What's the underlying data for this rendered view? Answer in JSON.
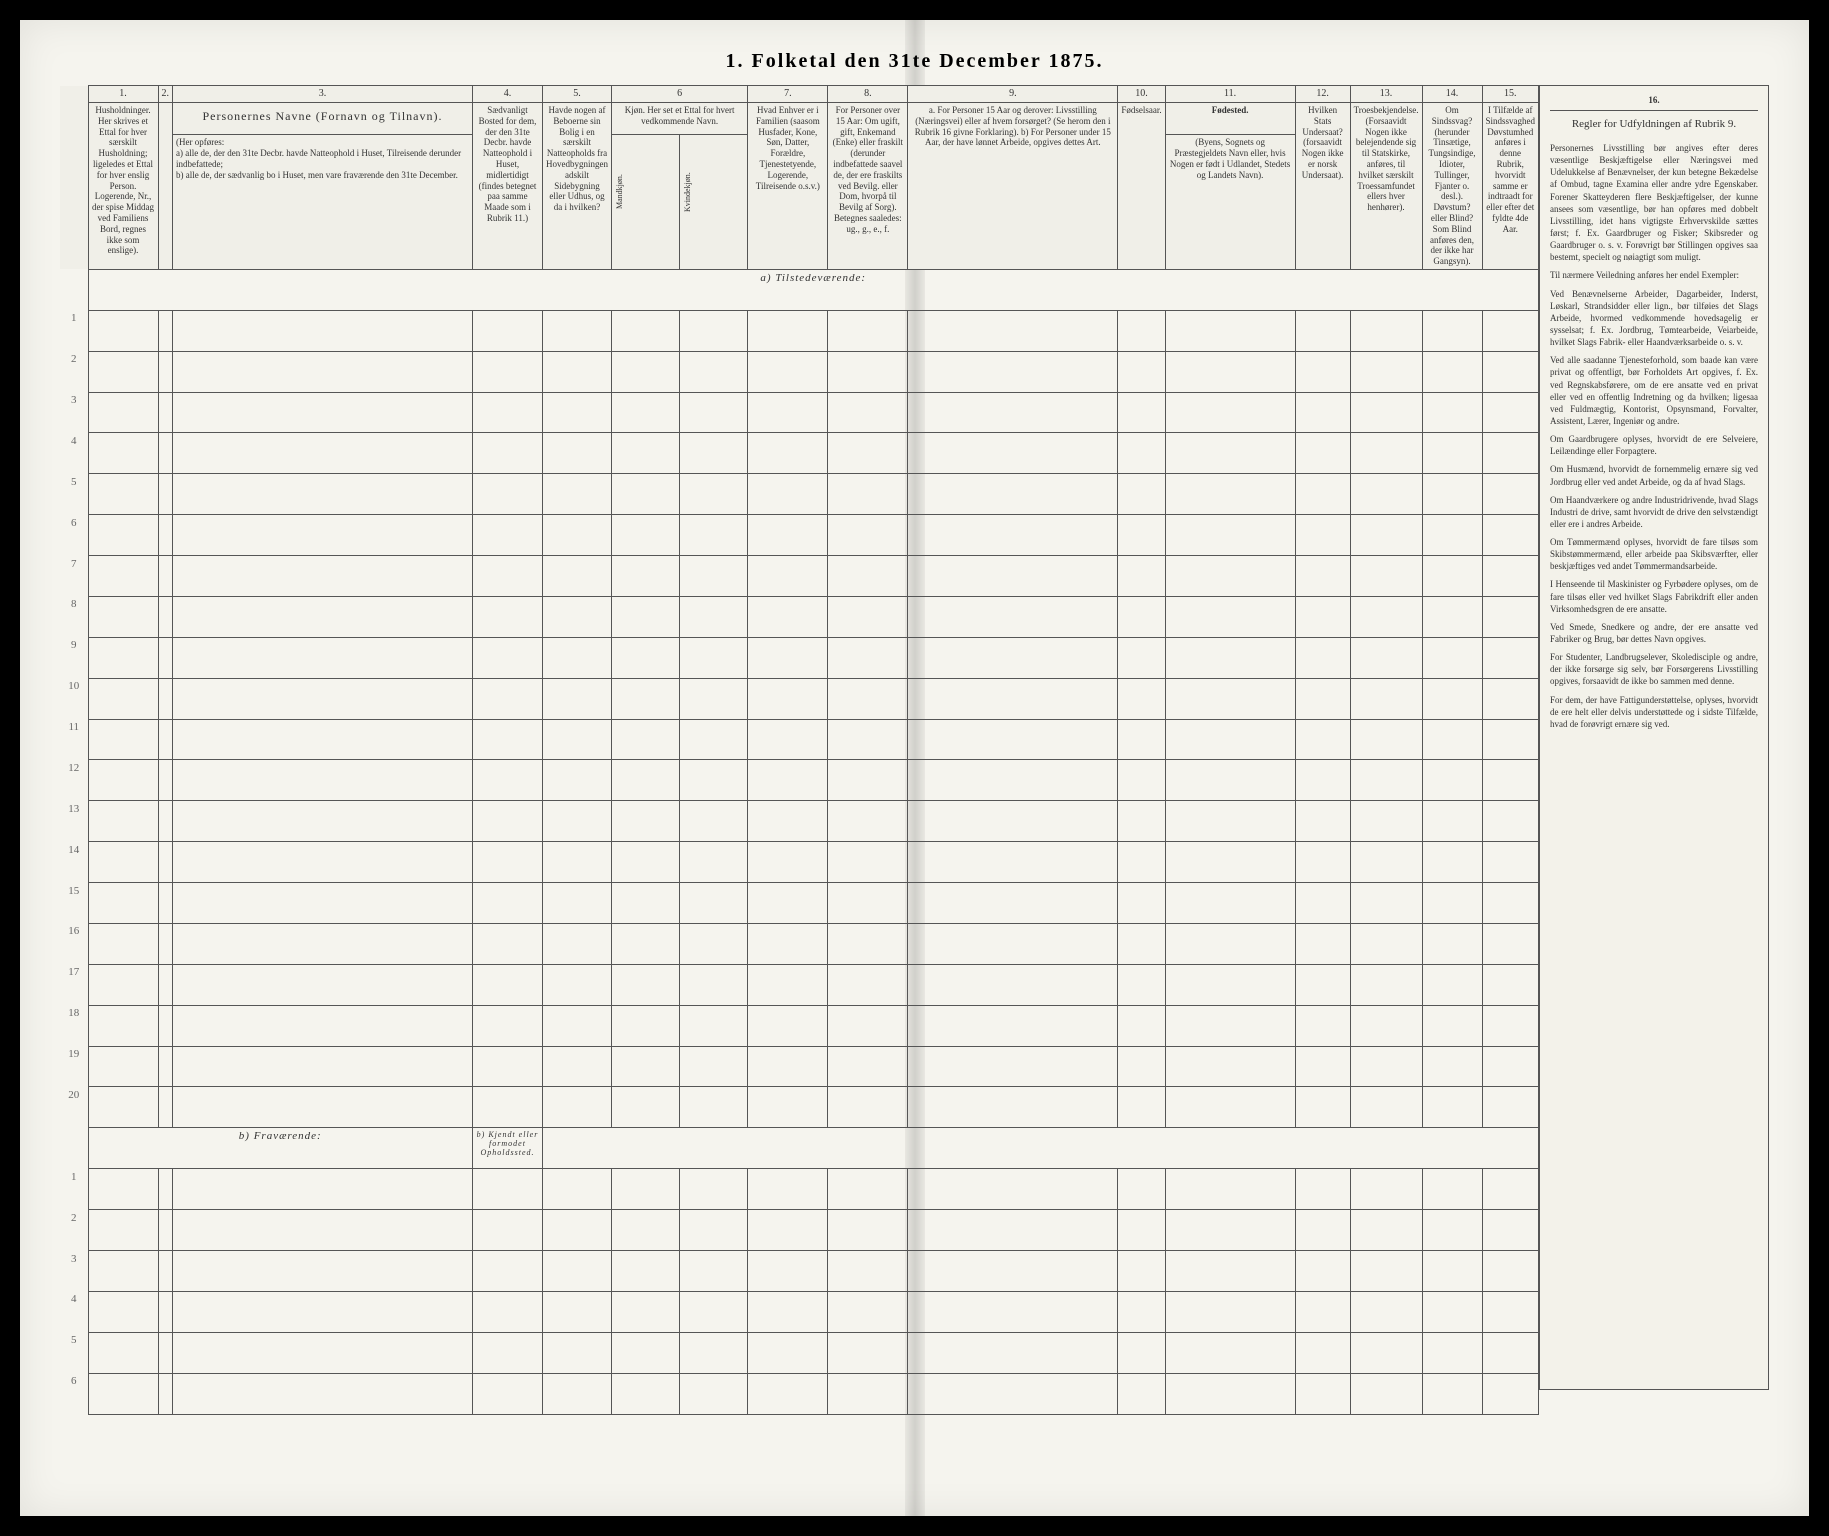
{
  "title": "1. Folketal den 31te December 1875.",
  "columns": {
    "c1_num": "1.",
    "c2_num": "2.",
    "c3_num": "3.",
    "c4_num": "4.",
    "c5_num": "5.",
    "c6_num": "6",
    "c7_num": "7.",
    "c8_num": "8.",
    "c9_num": "9.",
    "c10_num": "10.",
    "c11_num": "11.",
    "c12_num": "12.",
    "c13_num": "13.",
    "c14_num": "14.",
    "c15_num": "15.",
    "c16_num": "16.",
    "c1": "Husholdninger. Her skrives et Ettal for hver særskilt Husholdning; ligeledes et Ettal for hver enslig Person. Logerende, Nr., der spise Middag ved Familiens Bord, regnes ikke som enslige).",
    "c3_head": "Personernes Navne (Fornavn og Tilnavn).",
    "c3_sub": "(Her opføres:\na) alle de, der den 31te Decbr. havde Natteophold i Huset, Tilreisende derunder indbefattede;\nb) alle de, der sædvanlig bo i Huset, men vare fraværende den 31te December.",
    "c4": "Sædvanligt Bosted for dem, der den 31te Decbr. havde Natteophold i Huset, midlertidigt (findes betegnet paa samme Maade som i Rubrik 11.)",
    "c5": "Havde nogen af Beboerne sin Bolig i en særskilt Natteopholds fra Hovedbygningen adskilt Sidebygning eller Udhus, og da i hvilken?",
    "c6": "Kjøn. Her set et Ettal for hvert vedkommende Navn.",
    "c6a": "Mandkjøn.",
    "c6b": "Kvindekjøn.",
    "c7": "Hvad Enhver er i Familien (saasom Husfader, Kone, Søn, Datter, Forældre, Tjenestetyende, Logerende, Tilreisende o.s.v.)",
    "c8": "For Personer over 15 Aar: Om ugift, gift, Enkemand (Enke) eller fraskilt (derunder indbefattede saavel de, der ere fraskilts ved Bevilg. eller Dom, hvorpå til Bevilg af Sorg).\nBetegnes saaledes: ug., g., e., f.",
    "c9": "a. For Personer 15 Aar og derover: Livsstilling (Næringsvei) eller af hvem forsørget? (Se herom den i Rubrik 16 givne Forklaring).\nb) For Personer under 15 Aar, der have lønnet Arbeide, opgives dettes Art.",
    "c10": "Fødselsaar.",
    "c11_head": "Fødested.",
    "c11": "(Byens, Sognets og Præstegjeldets Navn eller, hvis Nogen er født i Udlandet, Stedets og Landets Navn).",
    "c12": "Hvilken Stats Undersaat? (forsaavidt Nogen ikke er norsk Undersaat).",
    "c13": "Troesbekjendelse. (Forsaavidt Nogen ikke belejendende sig til Statskirke, anføres, til hvilket særskilt Troessamfundet ellers hver henhører).",
    "c14": "Om Sindssvag? (herunder Tinsætige, Tungsindige, Idioter, Tullinger, Fjanter o. desl.). Døvstum? eller Blind? Som Blind anføres den, der ikke har Gangsyn).",
    "c15": "I Tilfælde af Sindssvaghed Døvstumhed anføres i denne Rubrik, hvorvidt samme er indtraadt for eller efter det fyldte 4de Aar.",
    "c16_head": "Regler for Udfyldningen af Rubrik 9."
  },
  "sections": {
    "a": "a) Tilstedeværende:",
    "b": "b) Fraværende:",
    "b_col4": "b) Kjendt eller formodet Opholdssted."
  },
  "rows_a": [
    "1",
    "2",
    "3",
    "4",
    "5",
    "6",
    "7",
    "8",
    "9",
    "10",
    "11",
    "12",
    "13",
    "14",
    "15",
    "16",
    "17",
    "18",
    "19",
    "20"
  ],
  "rows_b": [
    "1",
    "2",
    "3",
    "4",
    "5",
    "6"
  ],
  "instructions": {
    "p1": "Personernes Livsstilling bør angives efter deres væsentlige Beskjæftigelse eller Næringsvei med Udelukkelse af Benævnelser, der kun betegne Bekædelse af Ombud, tagne Examina eller andre ydre Egenskaber. Forener Skatteyderen flere Beskjæftigelser, der kunne ansees som væsentlige, bør han opføres med dobbelt Livsstilling, idet hans vigtigste Erhvervskilde sættes først; f. Ex. Gaardbruger og Fisker; Skibsreder og Gaardbruger o. s. v. Forøvrigt bør Stillingen opgives saa bestemt, specielt og nøiagtigt som muligt.",
    "p2": "Til nærmere Veiledning anføres her endel Exempler:",
    "p3": "Ved Benævnelserne Arbeider, Dagarbeider, Inderst, Løskarl, Strandsidder eller lign., bør tilføies det Slags Arbeide, hvormed vedkommende hovedsagelig er sysselsat; f. Ex. Jordbrug, Tømtearbeide, Veiarbeide, hvilket Slags Fabrik- eller Haandværksarbeide o. s. v.",
    "p4": "Ved alle saadanne Tjenesteforhold, som baade kan være privat og offentligt, bør Forholdets Art opgives, f. Ex. ved Regnskabsførere, om de ere ansatte ved en privat eller ved en offentlig Indretning og da hvilken; ligesaa ved Fuldmægtig, Kontorist, Opsynsmand, Forvalter, Assistent, Lærer, Ingeniør og andre.",
    "p5": "Om Gaardbrugere oplyses, hvorvidt de ere Selveiere, Leilændinge eller Forpagtere.",
    "p6": "Om Husmænd, hvorvidt de fornemmelig ernære sig ved Jordbrug eller ved andet Arbeide, og da af hvad Slags.",
    "p7": "Om Haandværkere og andre Industridrivende, hvad Slags Industri de drive, samt hvorvidt de drive den selvstændigt eller ere i andres Arbeide.",
    "p8": "Om Tømmermænd oplyses, hvorvidt de fare tilsøs som Skibstømmermænd, eller arbeide paa Skibsværfter, eller beskjæftiges ved andet Tømmermandsarbeide.",
    "p9": "I Henseende til Maskinister og Fyrbødere oplyses, om de fare tilsøs eller ved hvilket Slags Fabrikdrift eller anden Virksomhedsgren de ere ansatte.",
    "p10": "Ved Smede, Snedkere og andre, der ere ansatte ved Fabriker og Brug, bør dettes Navn opgives.",
    "p11": "For Studenter, Landbrugselever, Skoledisciple og andre, der ikke forsørge sig selv, bør Forsørgerens Livsstilling opgives, forsaavidt de ikke bo sammen med denne.",
    "p12": "For dem, der have Fattigunderstøttelse, oplyses, hvorvidt de ere helt eller delvis understøttede og i sidste Tilfælde, hvad de forøvrigt ernære sig ved."
  }
}
